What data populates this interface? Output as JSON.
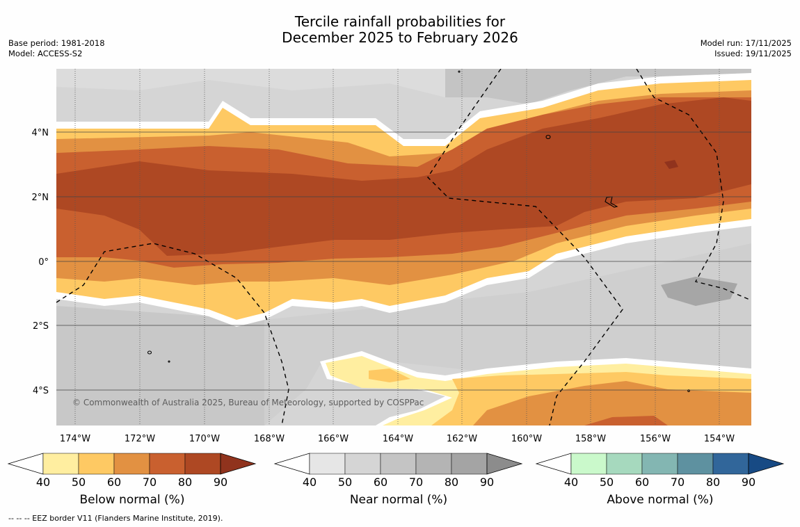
{
  "title": {
    "line1": "Tercile rainfall probabilities for",
    "line2": "December 2025 to February 2026"
  },
  "meta_left": {
    "base_period": "Base period: 1981-2018",
    "model": "Model: ACCESS-S2"
  },
  "meta_right": {
    "model_run": "Model run: 17/11/2025",
    "issued": "Issued: 19/11/2025"
  },
  "map": {
    "lat_labels": [
      "4°N",
      "2°N",
      "0°",
      "2°S",
      "4°S"
    ],
    "lon_labels": [
      "174°W",
      "172°W",
      "170°W",
      "168°W",
      "166°W",
      "164°W",
      "162°W",
      "160°W",
      "158°W",
      "156°W",
      "154°W"
    ],
    "copyright": "© Commonwealth of Australia 2025, Bureau of Meteorology, supported by COSPPac"
  },
  "colorbars": [
    {
      "name": "below",
      "label": "Below normal (%)",
      "ticks": [
        "40",
        "50",
        "60",
        "70",
        "80",
        "90"
      ],
      "colors": [
        "#ffeea0",
        "#fec963",
        "#e29142",
        "#c9602f",
        "#ae4823",
        "#90331d"
      ]
    },
    {
      "name": "near",
      "label": "Near normal (%)",
      "ticks": [
        "40",
        "50",
        "60",
        "70",
        "80",
        "90"
      ],
      "colors": [
        "#e6e6e6",
        "#d5d5d5",
        "#c4c4c4",
        "#b4b4b4",
        "#a4a4a4",
        "#8c8c8c"
      ]
    },
    {
      "name": "above",
      "label": "Above normal (%)",
      "ticks": [
        "40",
        "50",
        "60",
        "70",
        "80",
        "90"
      ],
      "colors": [
        "#caf9cb",
        "#a6d9be",
        "#83b6b2",
        "#5e91a0",
        "#31669a",
        "#174a84"
      ]
    }
  ],
  "footnote": "-- -- -- EEZ border V11 (Flanders Marine Institute, 2019)."
}
